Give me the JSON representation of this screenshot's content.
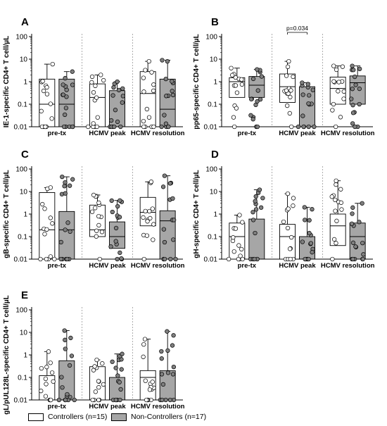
{
  "legend": {
    "controllers": {
      "label": "Controllers (n=15)",
      "color": "#ffffff"
    },
    "noncontrollers": {
      "label": "Non-Controllers (n=17)",
      "color": "#a6a6a6"
    }
  },
  "chart_data": [
    {
      "panel": "A",
      "type": "box",
      "yscale": "log",
      "ylim": [
        0.01,
        100
      ],
      "ylabel": "IE-1-specific CD4+ T cell/µL",
      "yticks": [
        "0.01",
        "0.1",
        "1",
        "10",
        "100"
      ],
      "groups": [
        "pre-tx",
        "HCMV peak",
        "HCMV resolution"
      ],
      "series": [
        {
          "name": "Controllers (n=15)",
          "boxes": [
            {
              "min": 0.01,
              "q1": 0.01,
              "median": 0.1,
              "q3": 1.3,
              "max": 6
            },
            {
              "min": 0.01,
              "q1": 0.01,
              "median": 0.2,
              "q3": 0.8,
              "max": 2
            },
            {
              "min": 0.01,
              "q1": 0.01,
              "median": 0.3,
              "q3": 2.8,
              "max": 8
            }
          ]
        },
        {
          "name": "Non-Controllers (n=17)",
          "boxes": [
            {
              "min": 0.01,
              "q1": 0.01,
              "median": 0.1,
              "q3": 1.3,
              "max": 2.8
            },
            {
              "min": 0.01,
              "q1": 0.01,
              "median": 0.01,
              "q3": 0.4,
              "max": 1
            },
            {
              "min": 0.01,
              "q1": 0.01,
              "median": 0.06,
              "q3": 1.3,
              "max": 9
            }
          ]
        }
      ],
      "annotations": []
    },
    {
      "panel": "B",
      "type": "box",
      "yscale": "log",
      "ylim": [
        0.01,
        100
      ],
      "ylabel": "pp65-specific CD4+ T cell/µL",
      "yticks": [
        "0.01",
        "0.1",
        "1",
        "10",
        "100"
      ],
      "groups": [
        "pre-tx",
        "HCMV peak",
        "HCMV resolution"
      ],
      "series": [
        {
          "name": "Controllers (n=15)",
          "boxes": [
            {
              "min": 0.01,
              "q1": 0.2,
              "median": 1.0,
              "q3": 1.5,
              "max": 4
            },
            {
              "min": 0.01,
              "q1": 0.12,
              "median": 0.6,
              "q3": 2.2,
              "max": 8
            },
            {
              "min": 0.01,
              "q1": 0.1,
              "median": 0.5,
              "q3": 1.6,
              "max": 5
            }
          ]
        },
        {
          "name": "Non-Controllers (n=17)",
          "boxes": [
            {
              "min": 0.01,
              "q1": 0.2,
              "median": 0.7,
              "q3": 1.7,
              "max": 3.5
            },
            {
              "min": 0.01,
              "q1": 0.01,
              "median": 0.01,
              "q3": 0.6,
              "max": 0.9
            },
            {
              "min": 0.01,
              "q1": 0.1,
              "median": 0.9,
              "q3": 1.8,
              "max": 5
            }
          ]
        }
      ],
      "annotations": [
        {
          "text": "p=0.034",
          "between": "HCMV peak"
        }
      ]
    },
    {
      "panel": "C",
      "type": "box",
      "yscale": "log",
      "ylim": [
        0.01,
        100
      ],
      "ylabel": "gB-specific CD4+ T cell/µL",
      "yticks": [
        "0.01",
        "0.1",
        "1",
        "10",
        "100"
      ],
      "groups": [
        "pre-tx",
        "HCMV peak",
        "HCMV resolution"
      ],
      "series": [
        {
          "name": "Controllers (n=15)",
          "boxes": [
            {
              "min": 0.01,
              "q1": 0.01,
              "median": 0.2,
              "q3": 9,
              "max": 15
            },
            {
              "min": 0.01,
              "q1": 0.1,
              "median": 0.2,
              "q3": 2.5,
              "max": 7
            },
            {
              "min": 0.01,
              "q1": 0.3,
              "median": 1.2,
              "q3": 5.5,
              "max": 27
            }
          ]
        },
        {
          "name": "Non-Controllers (n=17)",
          "boxes": [
            {
              "min": 0.01,
              "q1": 0.01,
              "median": 0.2,
              "q3": 1.3,
              "max": 45
            },
            {
              "min": 0.01,
              "q1": 0.03,
              "median": 0.1,
              "q3": 0.45,
              "max": 4
            },
            {
              "min": 0.01,
              "q1": 0.01,
              "median": 0.5,
              "q3": 1.4,
              "max": 50
            }
          ]
        }
      ],
      "annotations": []
    },
    {
      "panel": "D",
      "type": "box",
      "yscale": "log",
      "ylim": [
        0.01,
        100
      ],
      "ylabel": "gH-specific CD4+ T cell/µL",
      "yticks": [
        "0.01",
        "0.1",
        "1",
        "10",
        "100"
      ],
      "groups": [
        "pre-tx",
        "HCMV peak",
        "HCMV resolution"
      ],
      "series": [
        {
          "name": "Controllers (n=15)",
          "boxes": [
            {
              "min": 0.01,
              "q1": 0.01,
              "median": 0.1,
              "q3": 0.4,
              "max": 0.9
            },
            {
              "min": 0.01,
              "q1": 0.01,
              "median": 0.1,
              "q3": 0.35,
              "max": 8
            },
            {
              "min": 0.01,
              "q1": 0.04,
              "median": 0.3,
              "q3": 1.0,
              "max": 30
            }
          ]
        },
        {
          "name": "Non-Controllers (n=17)",
          "boxes": [
            {
              "min": 0.01,
              "q1": 0.01,
              "median": 0.01,
              "q3": 0.6,
              "max": 12
            },
            {
              "min": 0.01,
              "q1": 0.01,
              "median": 0.01,
              "q3": 0.1,
              "max": 2
            },
            {
              "min": 0.01,
              "q1": 0.01,
              "median": 0.1,
              "q3": 0.4,
              "max": 3
            }
          ]
        }
      ],
      "annotations": []
    },
    {
      "panel": "E",
      "type": "box",
      "yscale": "log",
      "ylim": [
        0.01,
        100
      ],
      "ylabel": "gL/pUL128L-specific CD4+ T cell/µL",
      "yticks": [
        "0.01",
        "0.1",
        "1",
        "10",
        "100"
      ],
      "groups": [
        "pre-tx",
        "HCMV peak",
        "HCMV resolution"
      ],
      "series": [
        {
          "name": "Controllers (n=15)",
          "boxes": [
            {
              "min": 0.01,
              "q1": 0.01,
              "median": 0.01,
              "q3": 0.12,
              "max": 1.4
            },
            {
              "min": 0.01,
              "q1": 0.01,
              "median": 0.01,
              "q3": 0.3,
              "max": 0.6
            },
            {
              "min": 0.01,
              "q1": 0.01,
              "median": 0.1,
              "q3": 0.2,
              "max": 5
            }
          ]
        },
        {
          "name": "Non-Controllers (n=17)",
          "boxes": [
            {
              "min": 0.01,
              "q1": 0.01,
              "median": 0.01,
              "q3": 0.55,
              "max": 12
            },
            {
              "min": 0.01,
              "q1": 0.01,
              "median": 0.01,
              "q3": 0.1,
              "max": 1.1
            },
            {
              "min": 0.01,
              "q1": 0.01,
              "median": 0.01,
              "q3": 0.2,
              "max": 11
            }
          ]
        }
      ],
      "annotations": []
    }
  ]
}
